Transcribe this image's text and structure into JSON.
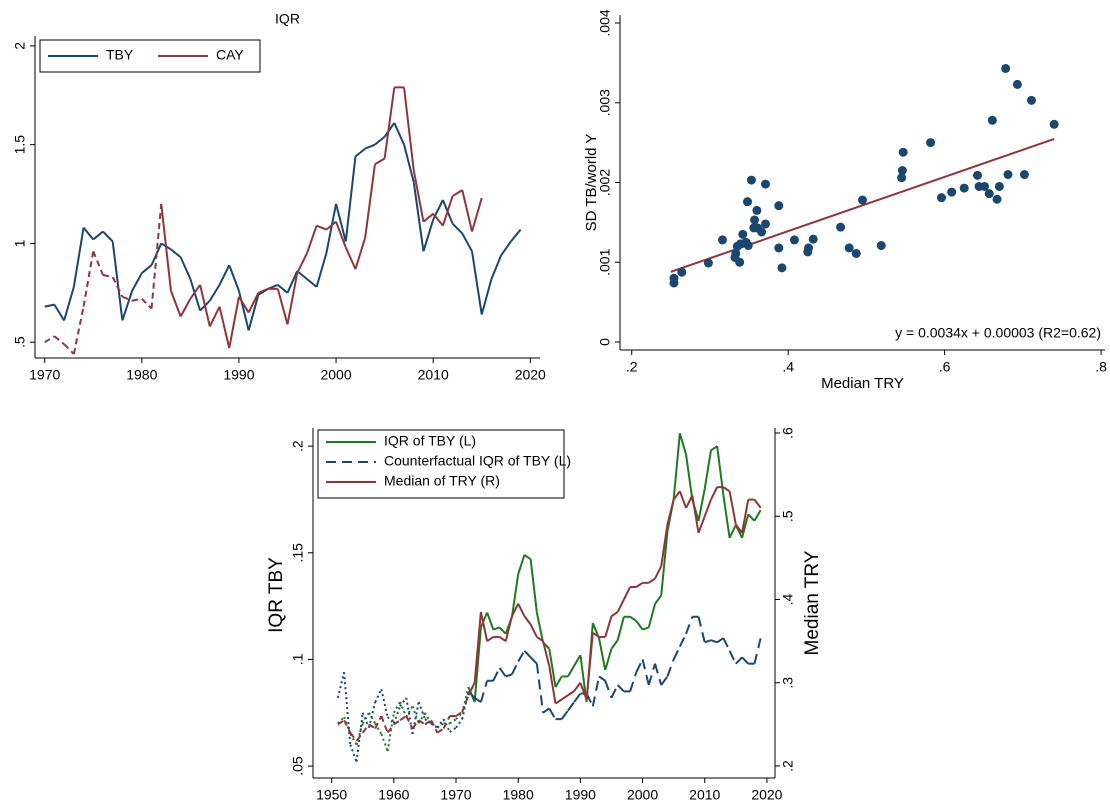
{
  "chart_data": [
    {
      "type": "line",
      "title": "IQR",
      "legend": "top-left",
      "x": [
        1970,
        1971,
        1972,
        1973,
        1974,
        1975,
        1976,
        1977,
        1978,
        1979,
        1980,
        1981,
        1982,
        1983,
        1984,
        1985,
        1986,
        1987,
        1988,
        1989,
        1990,
        1991,
        1992,
        1993,
        1994,
        1995,
        1996,
        1997,
        1998,
        1999,
        2000,
        2001,
        2002,
        2003,
        2004,
        2005,
        2006,
        2007,
        2008,
        2009,
        2010,
        2011,
        2012,
        2013,
        2014,
        2015,
        2016,
        2017,
        2018,
        2019
      ],
      "series": [
        {
          "name": "TBY",
          "color": "#1a476f",
          "style": "solid",
          "values": [
            0.68,
            0.69,
            0.61,
            0.78,
            1.08,
            1.02,
            1.06,
            1.01,
            0.61,
            0.76,
            0.85,
            0.89,
            1.0,
            0.97,
            0.93,
            0.82,
            0.66,
            0.71,
            0.79,
            0.89,
            0.76,
            0.56,
            0.74,
            0.77,
            0.79,
            0.75,
            0.86,
            0.82,
            0.78,
            0.95,
            1.2,
            1.01,
            1.44,
            1.48,
            1.5,
            1.54,
            1.61,
            1.5,
            1.31,
            0.96,
            1.12,
            1.22,
            1.1,
            1.05,
            0.96,
            0.64,
            0.82,
            0.94,
            1.01,
            1.07
          ]
        },
        {
          "name": "CAY",
          "color": "#90353b",
          "style": "solid",
          "early_style": "dash",
          "dashed_through": 1982,
          "values": [
            0.5,
            0.53,
            0.49,
            0.44,
            0.68,
            0.96,
            0.84,
            0.83,
            0.73,
            0.71,
            0.72,
            0.67,
            1.2,
            0.76,
            0.63,
            0.72,
            0.79,
            0.58,
            0.68,
            0.47,
            0.73,
            0.65,
            0.75,
            0.77,
            0.77,
            0.59,
            0.85,
            0.95,
            1.09,
            1.07,
            1.11,
            0.98,
            0.87,
            1.03,
            1.4,
            1.43,
            1.79,
            1.79,
            1.37,
            1.11,
            1.15,
            1.09,
            1.24,
            1.27,
            1.06,
            1.23,
            null,
            null,
            null,
            null
          ]
        }
      ],
      "xlim": [
        1969,
        2021
      ],
      "xticks": [
        1970,
        1980,
        1990,
        2000,
        2010,
        2020
      ],
      "ylim": [
        0.42,
        2.05
      ],
      "yticks": [
        {
          "value": 0.5,
          "label": ".5"
        },
        1,
        1.5,
        2
      ]
    },
    {
      "type": "scatter",
      "xlabel": "Median TRY",
      "ylabel": "SD TB/world Y",
      "color": "#1a476f",
      "x": [
        0.254,
        0.254,
        0.264,
        0.298,
        0.316,
        0.332,
        0.333,
        0.335,
        0.338,
        0.339,
        0.342,
        0.346,
        0.349,
        0.348,
        0.353,
        0.356,
        0.357,
        0.36,
        0.361,
        0.366,
        0.371,
        0.371,
        0.388,
        0.388,
        0.392,
        0.408,
        0.425,
        0.426,
        0.432,
        0.467,
        0.478,
        0.487,
        0.495,
        0.519,
        0.545,
        0.546,
        0.547,
        0.582,
        0.596,
        0.609,
        0.625,
        0.642,
        0.644,
        0.651,
        0.657,
        0.661,
        0.667,
        0.67,
        0.678,
        0.681,
        0.693,
        0.702,
        0.711,
        0.74
      ],
      "values": [
        0.0008,
        0.00074,
        0.000875,
        0.00099,
        0.00128,
        0.00106,
        0.00111,
        0.0012,
        0.001,
        0.00123,
        0.00135,
        0.00125,
        0.00121,
        0.00176,
        0.00203,
        0.00143,
        0.00153,
        0.00165,
        0.00143,
        0.00138,
        0.00148,
        0.00198,
        0.00171,
        0.00118,
        0.00093,
        0.00128,
        0.00113,
        0.00118,
        0.00129,
        0.00144,
        0.00118,
        0.00111,
        0.00178,
        0.00121,
        0.00206,
        0.00215,
        0.00238,
        0.0025,
        0.00181,
        0.00188,
        0.00193,
        0.00209,
        0.00195,
        0.00195,
        0.00186,
        0.00278,
        0.00179,
        0.00195,
        0.00343,
        0.0021,
        0.00323,
        0.0021,
        0.00303,
        0.00273
      ],
      "fit": {
        "slope": 0.0034,
        "intercept": 3e-05,
        "xrange": [
          0.25,
          0.74
        ],
        "color": "#90353b"
      },
      "annotation": "y = 0.0034x + 0.00003 (R2=0.62)",
      "xlim": [
        0.185,
        0.805
      ],
      "xticks": [
        {
          "value": 0.2,
          "label": ".2"
        },
        {
          "value": 0.4,
          "label": ".4"
        },
        {
          "value": 0.6,
          "label": ".6"
        },
        {
          "value": 0.8,
          "label": ".8"
        }
      ],
      "ylim": [
        -0.0001,
        0.0041
      ],
      "yticks": [
        0,
        {
          "value": 0.001,
          "label": ".001"
        },
        {
          "value": 0.002,
          "label": ".002"
        },
        {
          "value": 0.003,
          "label": ".003"
        },
        {
          "value": 0.004,
          "label": ".004"
        }
      ]
    },
    {
      "type": "line",
      "ylabel": "IQR TBY",
      "y2label": "Median TRY",
      "legend": "top-left",
      "x": [
        1951,
        1952,
        1953,
        1954,
        1955,
        1956,
        1957,
        1958,
        1959,
        1960,
        1961,
        1962,
        1963,
        1964,
        1965,
        1966,
        1967,
        1968,
        1969,
        1970,
        1971,
        1972,
        1973,
        1974,
        1975,
        1976,
        1977,
        1978,
        1979,
        1980,
        1981,
        1982,
        1983,
        1984,
        1985,
        1986,
        1987,
        1988,
        1989,
        1990,
        1991,
        1992,
        1993,
        1994,
        1995,
        1996,
        1997,
        1998,
        1999,
        2000,
        2001,
        2002,
        2003,
        2004,
        2005,
        2006,
        2007,
        2008,
        2009,
        2010,
        2011,
        2012,
        2013,
        2014,
        2015,
        2016,
        2017,
        2018,
        2019
      ],
      "series": [
        {
          "name": "IQR of TBY (L)",
          "color": "#1f7a1f",
          "style": "solid",
          "early_style": "dot",
          "dashed_through": 1972,
          "values": [
            0.07,
            0.073,
            0.065,
            0.06,
            0.07,
            0.075,
            0.07,
            0.065,
            0.057,
            0.075,
            0.08,
            0.073,
            0.078,
            0.07,
            0.075,
            0.07,
            0.068,
            0.07,
            0.07,
            0.072,
            0.075,
            0.087,
            0.08,
            0.115,
            0.122,
            0.114,
            0.115,
            0.112,
            0.12,
            0.14,
            0.149,
            0.147,
            0.122,
            0.108,
            0.105,
            0.087,
            0.092,
            0.092,
            0.097,
            0.102,
            0.08,
            0.117,
            0.11,
            0.095,
            0.105,
            0.109,
            0.12,
            0.12,
            0.118,
            0.114,
            0.115,
            0.126,
            0.13,
            0.16,
            0.175,
            0.206,
            0.196,
            0.175,
            0.165,
            0.18,
            0.198,
            0.2,
            0.177,
            0.157,
            0.163,
            0.157,
            0.168,
            0.165,
            0.17
          ]
        },
        {
          "name": "Counterfactual IQR of TBY (L)",
          "color": "#1a476f",
          "style": "longdash",
          "early_style": "dot",
          "dashed_through": 1972,
          "values": [
            0.082,
            0.094,
            0.06,
            0.052,
            0.075,
            0.068,
            0.08,
            0.086,
            0.073,
            0.07,
            0.078,
            0.082,
            0.065,
            0.08,
            0.072,
            0.07,
            0.068,
            0.072,
            0.066,
            0.068,
            0.072,
            0.085,
            0.082,
            0.08,
            0.09,
            0.09,
            0.096,
            0.092,
            0.093,
            0.099,
            0.104,
            0.101,
            0.098,
            0.075,
            0.077,
            0.072,
            0.072,
            0.076,
            0.08,
            0.084,
            0.084,
            0.078,
            0.092,
            0.09,
            0.082,
            0.088,
            0.085,
            0.085,
            0.094,
            0.1,
            0.088,
            0.098,
            0.088,
            0.092,
            0.1,
            0.106,
            0.112,
            0.12,
            0.12,
            0.108,
            0.109,
            0.108,
            0.11,
            0.104,
            0.098,
            0.101,
            0.098,
            0.098,
            0.11
          ]
        },
        {
          "name": "Median of TRY (R)",
          "color": "#90353b",
          "style": "solid",
          "early_style": "dash",
          "dashed_through": 1972,
          "axis": "y2",
          "values": [
            0.25,
            0.255,
            0.24,
            0.23,
            0.24,
            0.25,
            0.245,
            0.26,
            0.24,
            0.25,
            0.255,
            0.26,
            0.245,
            0.255,
            0.25,
            0.255,
            0.24,
            0.245,
            0.26,
            0.26,
            0.265,
            0.285,
            0.3,
            0.385,
            0.35,
            0.355,
            0.355,
            0.35,
            0.38,
            0.395,
            0.38,
            0.37,
            0.355,
            0.35,
            0.32,
            0.275,
            0.28,
            0.285,
            0.29,
            0.3,
            0.28,
            0.36,
            0.355,
            0.355,
            0.38,
            0.385,
            0.4,
            0.415,
            0.415,
            0.42,
            0.42,
            0.425,
            0.44,
            0.49,
            0.52,
            0.53,
            0.51,
            0.525,
            0.48,
            0.5,
            0.52,
            0.535,
            0.535,
            0.53,
            0.49,
            0.48,
            0.52,
            0.52,
            0.51
          ]
        }
      ],
      "xlim": [
        1947,
        2021.3
      ],
      "xticks": [
        1950,
        1960,
        1970,
        1980,
        1990,
        2000,
        2010,
        2020
      ],
      "ylim": [
        0.0444,
        0.2085
      ],
      "yticks": [
        {
          "value": 0.05,
          "label": ".05"
        },
        {
          "value": 0.1,
          "label": ".1"
        },
        {
          "value": 0.15,
          "label": ".15"
        },
        {
          "value": 0.2,
          "label": ".2"
        }
      ],
      "y2lim": [
        0.1856,
        0.606
      ],
      "y2ticks": [
        {
          "value": 0.2,
          "label": ".2"
        },
        {
          "value": 0.3,
          "label": ".3"
        },
        {
          "value": 0.4,
          "label": ".4"
        },
        {
          "value": 0.5,
          "label": ".5"
        },
        {
          "value": 0.6,
          "label": ".6"
        }
      ]
    }
  ]
}
